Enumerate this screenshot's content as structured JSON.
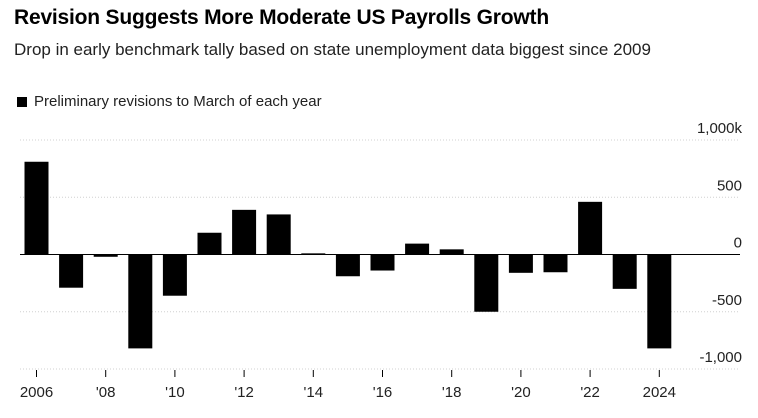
{
  "header": {
    "title": "Revision Suggests More Moderate US Payrolls Growth",
    "subtitle": "Drop in early benchmark tally based on state unemployment data biggest since 2009"
  },
  "legend": {
    "label": "Preliminary revisions to March of each year"
  },
  "colors": {
    "bar": "#000000",
    "grid": "#d0d0d0",
    "zero_line": "#000000"
  },
  "chart_data": {
    "type": "bar",
    "title": "Revision Suggests More Moderate US Payrolls Growth",
    "subtitle": "Drop in early benchmark tally based on state unemployment data biggest since 2009",
    "series_name": "Preliminary revisions to March of each year",
    "ylabel": "",
    "xlabel": "",
    "unit": "thousands",
    "ylim": [
      -1000,
      1000
    ],
    "y_ticks": [
      1000,
      500,
      0,
      -500,
      -1000
    ],
    "y_tick_labels": [
      "1,000k",
      "500",
      "0",
      "-500",
      "-1,000"
    ],
    "categories": [
      2006,
      2007,
      2008,
      2009,
      2010,
      2011,
      2012,
      2013,
      2014,
      2015,
      2016,
      2017,
      2018,
      2019,
      2020,
      2021,
      2022,
      2023,
      2024
    ],
    "values": [
      810,
      -290,
      -20,
      -820,
      -360,
      190,
      390,
      350,
      10,
      -190,
      -140,
      95,
      45,
      -500,
      -160,
      -155,
      460,
      -300,
      -820
    ],
    "x_tick_years": [
      2006,
      2008,
      2010,
      2012,
      2014,
      2016,
      2018,
      2020,
      2022,
      2024
    ],
    "x_tick_labels": [
      "2006",
      "'08",
      "'10",
      "'12",
      "'14",
      "'16",
      "'18",
      "'20",
      "'22",
      "2024"
    ]
  }
}
